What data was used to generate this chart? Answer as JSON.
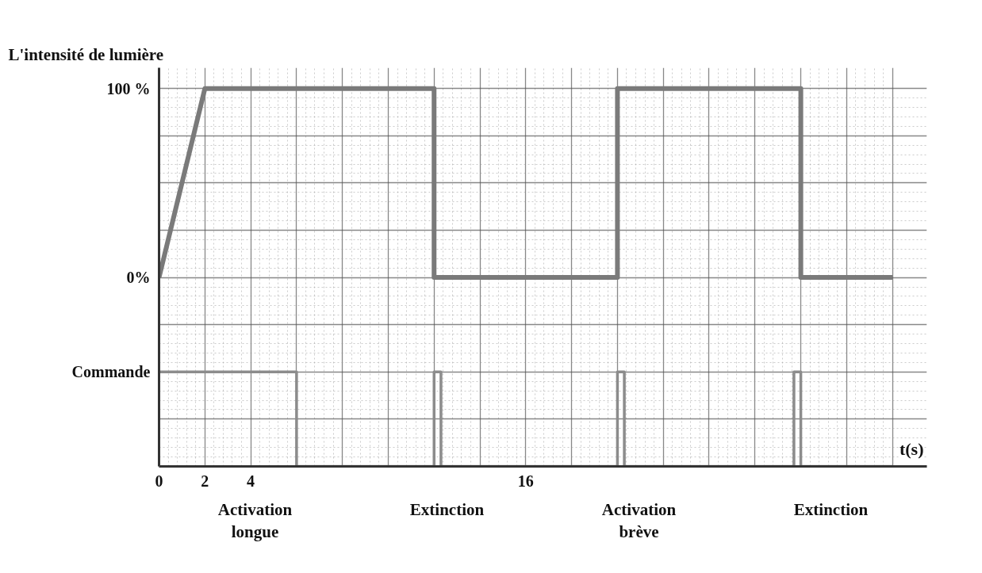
{
  "chart_data": {
    "type": "line",
    "ylabel": "L'intensité de lumière",
    "xlabel": "t(s)",
    "xlim": [
      0,
      33.5
    ],
    "ylim": [
      -100,
      111
    ],
    "xticks": [
      0,
      2,
      4,
      {
        "value": 6,
        "label": null
      },
      {
        "value": 8,
        "label": null
      },
      {
        "value": 10,
        "label": null
      },
      {
        "value": 12,
        "label": null
      },
      {
        "value": 14,
        "label": null
      },
      16,
      {
        "value": 18,
        "label": null
      },
      {
        "value": 20,
        "label": null
      },
      {
        "value": 22,
        "label": null
      },
      {
        "value": 24,
        "label": null
      },
      {
        "value": 26,
        "label": null
      },
      {
        "value": 28,
        "label": null
      },
      {
        "value": 30,
        "label": null
      },
      {
        "value": 32,
        "label": null
      }
    ],
    "yticks": [
      {
        "value": -100,
        "label": null
      },
      {
        "value": -75,
        "label": null
      },
      {
        "value": -50,
        "label": "Commande"
      },
      {
        "value": -25,
        "label": null
      },
      {
        "value": 0,
        "label": "0%"
      },
      {
        "value": 25,
        "label": null
      },
      {
        "value": 50,
        "label": null
      },
      {
        "value": 75,
        "label": null
      },
      {
        "value": 100,
        "label": "100 %"
      }
    ],
    "grid": true,
    "series": [
      {
        "color": "#7a7a7a",
        "x": [
          0,
          2,
          12,
          12,
          20,
          20,
          28,
          28,
          32
        ],
        "values": [
          0,
          100,
          100,
          0,
          0,
          100,
          100,
          0,
          0
        ]
      },
      {
        "color": "#8c8c8c",
        "x": [
          0,
          6,
          6,
          12,
          12,
          12.3,
          12.3,
          20,
          20,
          20.3,
          20.3,
          27.7,
          27.7,
          28,
          28,
          32
        ],
        "values": [
          -50,
          -50,
          -100,
          -100,
          -50,
          -50,
          -100,
          -100,
          -50,
          -50,
          -100,
          -100,
          -50,
          -50,
          -100,
          -100
        ]
      }
    ],
    "annotations": [
      "Activation\nlongue",
      "Extinction",
      "Activation\nbrève",
      "Extinction"
    ]
  }
}
